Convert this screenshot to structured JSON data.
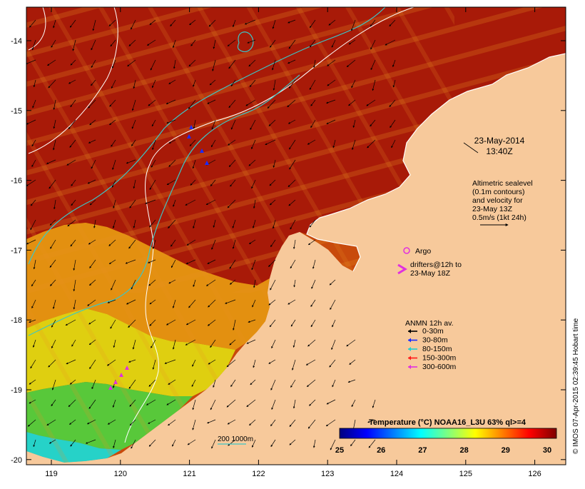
{
  "map": {
    "type": "sea-surface-temperature",
    "x_ticks": [
      "119",
      "120",
      "121",
      "122",
      "123",
      "124",
      "125",
      "126"
    ],
    "y_ticks": [
      "-14",
      "-15",
      "-16",
      "-17",
      "-18",
      "-19",
      "-20"
    ],
    "colors": {
      "land": "#f7c99b",
      "sea_warm": "#a81a08",
      "sea_mid": "#c84a0c",
      "sea_orange": "#e39010",
      "sea_yellow": "#dfcf10",
      "sea_green": "#58c83a",
      "sea_cyan": "#26d2c8",
      "contour_white": "#ffffff",
      "contour_cyan": "#3cc6c6",
      "argo_magenta": "#e030e0"
    }
  },
  "annotations": {
    "date": "23-May-2014",
    "time": "13:40Z",
    "altimetry_lines": [
      "Altimetric sealevel",
      "(0.1m contours)",
      "and velocity for",
      "23-May 13Z",
      "0.5m/s (1kt 24h)"
    ],
    "argo_label": "Argo",
    "drifters_lines": [
      "drifters@12h to",
      "23-May 18Z"
    ],
    "anmn_title": "ANMN 12h av.",
    "anmn_legend": [
      {
        "label": "0-30m",
        "color": "#000000"
      },
      {
        "label": "30-80m",
        "color": "#1a2cff"
      },
      {
        "label": "80-150m",
        "color": "#20d0d0"
      },
      {
        "label": "150-300m",
        "color": "#ff1a1a"
      },
      {
        "label": "300-600m",
        "color": "#e030e0"
      }
    ],
    "isobath_label": "200  1000m",
    "credit": "© IMOS 07-Apr-2015 02:39:45 Hobart time"
  },
  "colorbar": {
    "title": "Temperature (°C) NOAA16_L3U 63% ql>=4",
    "ticks": [
      "25",
      "26",
      "27",
      "28",
      "29",
      "30"
    ],
    "stops": [
      "#00007f",
      "#0000ff",
      "#007fff",
      "#00ffff",
      "#7fff7f",
      "#ffff00",
      "#ff7f00",
      "#ff0000",
      "#7f0000"
    ]
  }
}
